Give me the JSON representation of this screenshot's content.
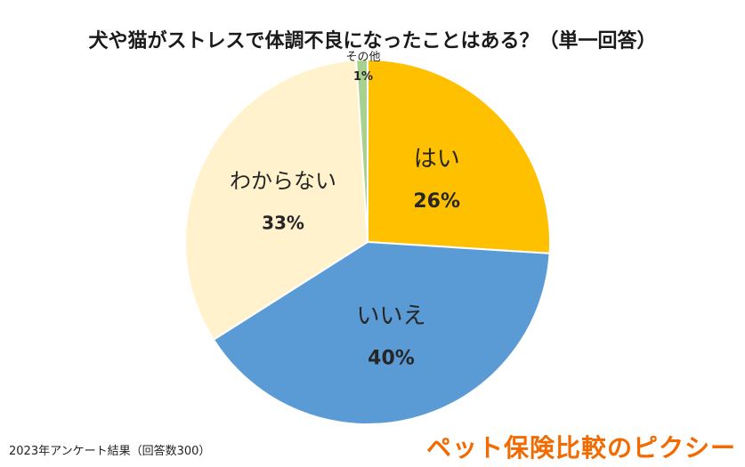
{
  "chart_data": {
    "type": "pie",
    "title": "犬や猫がストレスで体調不良になったことはある？（単一回答）",
    "slices": [
      {
        "label": "はい",
        "value": 26,
        "value_label": "26%",
        "color": "#ffc000"
      },
      {
        "label": "いいえ",
        "value": 40,
        "value_label": "40%",
        "color": "#5b9bd5"
      },
      {
        "label": "わからない",
        "value": 33,
        "value_label": "33%",
        "color": "#fff2cc"
      },
      {
        "label": "その他",
        "value": 1,
        "value_label": "1%",
        "color": "#a9d18e"
      }
    ],
    "start_angle_deg": 0,
    "direction": "clockwise"
  },
  "footnote": "2023年アンケート結果（回答数300）",
  "brand": "ペット保険比較のピクシー"
}
